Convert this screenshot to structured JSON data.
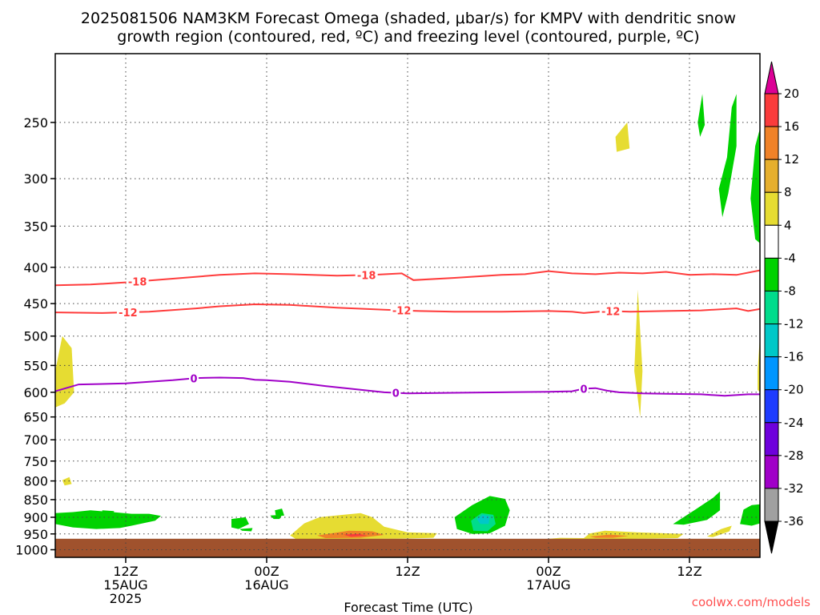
{
  "chart_data": {
    "type": "heatmap",
    "title_line1": "2025081506 NAM3KM Forecast Omega (shaded, μbar/s) for KMPV with dendritic snow",
    "title_line2": "growth region (contoured, red, ºC) and freezing level (contoured, purple, ºC)",
    "xlabel": "Forecast Time (UTC)",
    "credit": "coolwx.com/models",
    "y_axis": {
      "scale": "log-pressure",
      "ticks": [
        250,
        300,
        350,
        400,
        450,
        500,
        550,
        600,
        650,
        700,
        750,
        800,
        850,
        900,
        950,
        1000
      ],
      "range": [
        200,
        1025
      ]
    },
    "x_axis": {
      "unit": "hours since 2025-08-15 06Z",
      "range": [
        0,
        60
      ],
      "ticks": [
        {
          "hour": 6,
          "lines": [
            "12Z",
            "15AUG",
            "2025"
          ]
        },
        {
          "hour": 18,
          "lines": [
            "00Z",
            "16AUG"
          ]
        },
        {
          "hour": 30,
          "lines": [
            "12Z"
          ]
        },
        {
          "hour": 42,
          "lines": [
            "00Z",
            "17AUG"
          ]
        },
        {
          "hour": 54,
          "lines": [
            "12Z"
          ]
        }
      ]
    },
    "ground_below_hpa": 965,
    "ground_color": "#a0522d",
    "colorbar": {
      "bins": [
        {
          "from": -36,
          "to": -32,
          "color": "#a0a0a0"
        },
        {
          "from": -32,
          "to": -28,
          "color": "#a000c8"
        },
        {
          "from": -28,
          "to": -24,
          "color": "#6e00dc"
        },
        {
          "from": -24,
          "to": -20,
          "color": "#1e3cff"
        },
        {
          "from": -20,
          "to": -16,
          "color": "#0096ff"
        },
        {
          "from": -16,
          "to": -12,
          "color": "#00c8c8"
        },
        {
          "from": -12,
          "to": -8,
          "color": "#00dc8c"
        },
        {
          "from": -8,
          "to": -4,
          "color": "#00d200"
        },
        {
          "from": -4,
          "to": 4,
          "color": "#ffffff"
        },
        {
          "from": 4,
          "to": 8,
          "color": "#e6dc32"
        },
        {
          "from": 8,
          "to": 12,
          "color": "#e6af2d"
        },
        {
          "from": 12,
          "to": 16,
          "color": "#f08228"
        },
        {
          "from": 16,
          "to": 20,
          "color": "#fa3c3c"
        }
      ],
      "labels": [
        20,
        16,
        12,
        8,
        4,
        -4,
        -8,
        -12,
        -16,
        -20,
        -24,
        -28,
        -32,
        -36
      ],
      "over_color": "#dc0096",
      "under_color": "#000000"
    },
    "contours": [
      {
        "name": "-18",
        "color": "#ff3c3c",
        "points": [
          [
            0,
            424
          ],
          [
            3,
            423
          ],
          [
            6,
            420
          ],
          [
            10,
            415
          ],
          [
            14,
            410
          ],
          [
            17,
            408
          ],
          [
            20,
            409
          ],
          [
            24,
            411
          ],
          [
            27,
            410
          ],
          [
            29.5,
            408
          ],
          [
            30.5,
            417
          ],
          [
            34,
            414
          ],
          [
            38,
            410
          ],
          [
            40,
            409
          ],
          [
            42,
            405
          ],
          [
            44,
            408
          ],
          [
            46,
            409
          ],
          [
            48,
            407
          ],
          [
            50,
            408
          ],
          [
            52,
            406
          ],
          [
            54,
            410
          ],
          [
            56,
            409
          ],
          [
            58,
            410
          ],
          [
            60,
            404
          ]
        ],
        "labels": [
          {
            "x": 7,
            "text": "-18"
          },
          {
            "x": 26.5,
            "text": "-18"
          }
        ]
      },
      {
        "name": "-12",
        "color": "#ff3c3c",
        "points": [
          [
            0,
            463
          ],
          [
            4,
            464
          ],
          [
            8,
            462
          ],
          [
            12,
            457
          ],
          [
            14,
            454
          ],
          [
            17,
            451
          ],
          [
            20,
            452
          ],
          [
            24,
            456
          ],
          [
            28,
            459
          ],
          [
            31,
            461
          ],
          [
            34,
            462
          ],
          [
            38,
            462
          ],
          [
            42,
            461
          ],
          [
            44,
            462
          ],
          [
            45,
            464
          ],
          [
            47,
            461
          ],
          [
            49,
            462
          ],
          [
            52,
            461
          ],
          [
            55,
            460
          ],
          [
            58,
            457
          ],
          [
            59,
            461
          ],
          [
            60,
            458
          ]
        ],
        "labels": [
          {
            "x": 6.2,
            "text": "-12"
          },
          {
            "x": 29.5,
            "text": "-12"
          },
          {
            "x": 47.3,
            "text": "-12"
          }
        ]
      },
      {
        "name": "0",
        "color": "#a000c8",
        "points": [
          [
            0,
            598
          ],
          [
            2,
            585
          ],
          [
            6,
            583
          ],
          [
            10,
            577
          ],
          [
            12,
            573
          ],
          [
            14,
            572
          ],
          [
            16,
            573
          ],
          [
            17,
            576
          ],
          [
            18,
            577
          ],
          [
            20,
            580
          ],
          [
            23,
            588
          ],
          [
            26,
            595
          ],
          [
            28,
            600
          ],
          [
            30,
            602
          ],
          [
            34,
            601
          ],
          [
            38,
            600
          ],
          [
            42,
            599
          ],
          [
            44,
            598
          ],
          [
            45,
            593
          ],
          [
            46,
            592
          ],
          [
            47,
            597
          ],
          [
            48,
            600
          ],
          [
            50,
            602
          ],
          [
            52,
            603
          ],
          [
            55,
            604
          ],
          [
            57,
            607
          ],
          [
            59,
            604
          ],
          [
            60,
            604
          ]
        ],
        "labels": [
          {
            "x": 11.8,
            "text": "0"
          },
          {
            "x": 29,
            "text": "0"
          },
          {
            "x": 45,
            "text": "0"
          }
        ]
      }
    ],
    "shaded_regions": [
      {
        "color": "#00d200",
        "points": [
          [
            0,
            888
          ],
          [
            1.5,
            885
          ],
          [
            3,
            880
          ],
          [
            4.5,
            884
          ],
          [
            6.5,
            890
          ],
          [
            8,
            890
          ],
          [
            9,
            896
          ],
          [
            8.5,
            910
          ],
          [
            6.5,
            925
          ],
          [
            5.5,
            932
          ],
          [
            3.5,
            935
          ],
          [
            1.5,
            930
          ],
          [
            0,
            920
          ]
        ]
      },
      {
        "color": "#00d200",
        "points": [
          [
            4,
            880
          ],
          [
            5,
            882
          ],
          [
            5,
            886
          ],
          [
            4,
            884
          ]
        ]
      },
      {
        "color": "#e6dc32",
        "points": [
          [
            0,
            560
          ],
          [
            0.6,
            500
          ],
          [
            1.4,
            520
          ],
          [
            1.6,
            600
          ],
          [
            0.8,
            622
          ],
          [
            0,
            630
          ]
        ]
      },
      {
        "color": "#e6dc32",
        "points": [
          [
            0.6,
            798
          ],
          [
            1.2,
            790
          ],
          [
            1.4,
            808
          ],
          [
            0.8,
            812
          ]
        ]
      },
      {
        "color": "#00d200",
        "points": [
          [
            15,
            905
          ],
          [
            16.2,
            900
          ],
          [
            16.5,
            920
          ],
          [
            15.6,
            935
          ],
          [
            15,
            930
          ]
        ]
      },
      {
        "color": "#00d200",
        "points": [
          [
            15.7,
            935
          ],
          [
            16.8,
            932
          ],
          [
            16.7,
            942
          ],
          [
            15.9,
            940
          ]
        ]
      },
      {
        "color": "#00d200",
        "points": [
          [
            18.7,
            880
          ],
          [
            19.3,
            875
          ],
          [
            19.5,
            895
          ],
          [
            18.8,
            898
          ]
        ]
      },
      {
        "color": "#00d200",
        "points": [
          [
            18.3,
            895
          ],
          [
            19.3,
            893
          ],
          [
            19.1,
            905
          ],
          [
            18.6,
            905
          ]
        ]
      },
      {
        "color": "#e6dc32",
        "points": [
          [
            20,
            955
          ],
          [
            21.2,
            918
          ],
          [
            22.5,
            900
          ],
          [
            24.5,
            893
          ],
          [
            26,
            888
          ],
          [
            27,
            900
          ],
          [
            28,
            928
          ],
          [
            30,
            945
          ],
          [
            32.5,
            948
          ],
          [
            32.2,
            962
          ],
          [
            29,
            965
          ],
          [
            20.5,
            966
          ]
        ]
      },
      {
        "color": "#f08228",
        "points": [
          [
            22.3,
            955
          ],
          [
            25,
            940
          ],
          [
            27,
            942
          ],
          [
            28,
            953
          ],
          [
            26,
            962
          ],
          [
            23,
            963
          ]
        ]
      },
      {
        "color": "#fa3c3c",
        "points": [
          [
            24.5,
            952
          ],
          [
            25.8,
            950
          ],
          [
            26.6,
            955
          ],
          [
            25.2,
            959
          ]
        ]
      },
      {
        "color": "#00d200",
        "points": [
          [
            34,
            900
          ],
          [
            35.5,
            865
          ],
          [
            37,
            840
          ],
          [
            38.3,
            848
          ],
          [
            38.7,
            880
          ],
          [
            38.3,
            925
          ],
          [
            37,
            948
          ],
          [
            35.5,
            950
          ],
          [
            34.2,
            935
          ]
        ]
      },
      {
        "color": "#00dc8c",
        "points": [
          [
            35.4,
            910
          ],
          [
            36.3,
            888
          ],
          [
            37.3,
            893
          ],
          [
            37.5,
            920
          ],
          [
            36.8,
            942
          ],
          [
            35.6,
            940
          ]
        ]
      },
      {
        "color": "#00c8c8",
        "points": [
          [
            35.9,
            905
          ],
          [
            36.4,
            893
          ],
          [
            37,
            897
          ],
          [
            36.9,
            920
          ],
          [
            36.2,
            920
          ]
        ]
      },
      {
        "color": "#e6dc32",
        "points": [
          [
            41,
            968
          ],
          [
            43,
            962
          ],
          [
            45,
            963
          ],
          [
            45.5,
            949
          ],
          [
            46.8,
            940
          ],
          [
            49.5,
            945
          ],
          [
            53.5,
            950
          ],
          [
            53,
            963
          ],
          [
            45,
            968
          ]
        ]
      },
      {
        "color": "#f08228",
        "points": [
          [
            45.5,
            958
          ],
          [
            47.2,
            952
          ],
          [
            48.8,
            956
          ],
          [
            47.5,
            962
          ],
          [
            46,
            962
          ]
        ]
      },
      {
        "color": "#e6dc32",
        "points": [
          [
            47.7,
            262
          ],
          [
            48.7,
            250
          ],
          [
            48.9,
            272
          ],
          [
            47.8,
            275
          ]
        ]
      },
      {
        "color": "#e6dc32",
        "points": [
          [
            49.3,
            560
          ],
          [
            49.6,
            430
          ],
          [
            50,
            560
          ],
          [
            49.8,
            650
          ]
        ]
      },
      {
        "color": "#00d200",
        "points": [
          [
            52.6,
            920
          ],
          [
            54.5,
            878
          ],
          [
            56,
            845
          ],
          [
            56.6,
            828
          ],
          [
            56.6,
            880
          ],
          [
            55.5,
            908
          ],
          [
            53.5,
            922
          ]
        ]
      },
      {
        "color": "#e6dc32",
        "points": [
          [
            55.5,
            958
          ],
          [
            56.7,
            935
          ],
          [
            57.6,
            925
          ],
          [
            57.4,
            942
          ],
          [
            56,
            960
          ]
        ]
      },
      {
        "color": "#00d200",
        "points": [
          [
            58.3,
            920
          ],
          [
            58.6,
            878
          ],
          [
            59.3,
            865
          ],
          [
            60,
            863
          ],
          [
            60,
            918
          ],
          [
            59.3,
            925
          ]
        ]
      },
      {
        "color": "#00d200",
        "points": [
          [
            54.7,
            250
          ],
          [
            55.1,
            228
          ],
          [
            55.3,
            252
          ],
          [
            54.9,
            262
          ]
        ]
      },
      {
        "color": "#00d200",
        "points": [
          [
            56.5,
            310
          ],
          [
            57.2,
            280
          ],
          [
            57.6,
            238
          ],
          [
            58,
            228
          ],
          [
            58,
            270
          ],
          [
            57.3,
            315
          ],
          [
            56.8,
            340
          ]
        ]
      },
      {
        "color": "#00d200",
        "points": [
          [
            59.2,
            320
          ],
          [
            59.6,
            270
          ],
          [
            60,
            255
          ],
          [
            60,
            370
          ],
          [
            59.6,
            365
          ]
        ]
      },
      {
        "color": "#e6dc32",
        "points": [
          [
            59.8,
            560
          ],
          [
            60,
            500
          ],
          [
            60,
            600
          ],
          [
            59.8,
            595
          ]
        ]
      }
    ]
  }
}
